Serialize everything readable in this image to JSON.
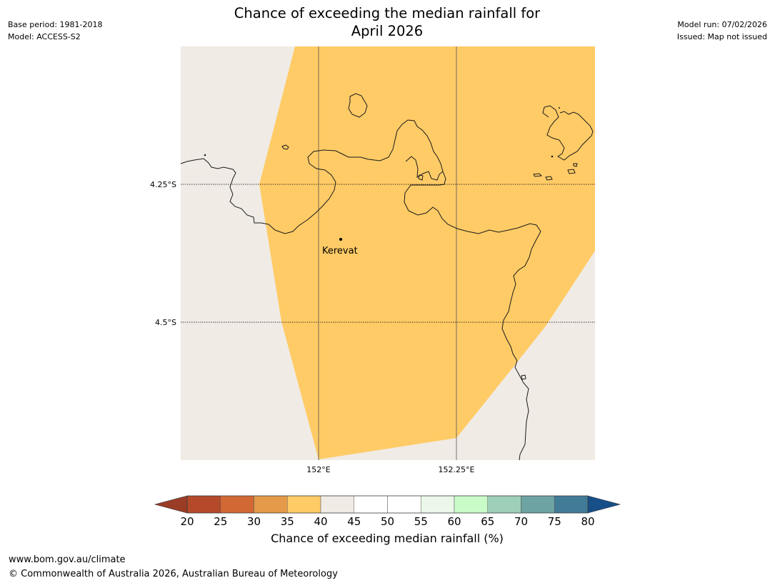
{
  "header": {
    "base_period": "Base period: 1981-2018",
    "model": "Model: ACCESS-S2",
    "title_line1": "Chance of exceeding the median rainfall for",
    "title_line2": "April 2026",
    "model_run": "Model run: 07/02/2026",
    "issued": "Issued: Map not issued"
  },
  "map": {
    "lat_labels": [
      "4.25°S",
      "4.5°S"
    ],
    "lon_labels": [
      "152°E",
      "152.25°E"
    ],
    "place_name": "Kerevat",
    "colors": {
      "outside_data": "#f0ebe5",
      "fill_35_40": "#ffcb66",
      "coastline": "#1a1a1a"
    }
  },
  "colorbar": {
    "title": "Chance of exceeding median rainfall (%)",
    "ticks": [
      "20",
      "25",
      "30",
      "35",
      "40",
      "45",
      "50",
      "55",
      "60",
      "65",
      "70",
      "75",
      "80"
    ],
    "under_color": "#9a3c26",
    "over_color": "#174f88",
    "colors": [
      "#b5492a",
      "#d26935",
      "#e49a49",
      "#ffcb66",
      "#f0ebe5",
      "#ffffff",
      "#ffffff",
      "#ebf7e9",
      "#c9fbc8",
      "#9ecfb8",
      "#6ea3a3",
      "#427b96"
    ]
  },
  "footer": {
    "url": "www.bom.gov.au/climate",
    "copyright": "© Commonwealth of Australia 2026, Australian Bureau of Meteorology"
  }
}
